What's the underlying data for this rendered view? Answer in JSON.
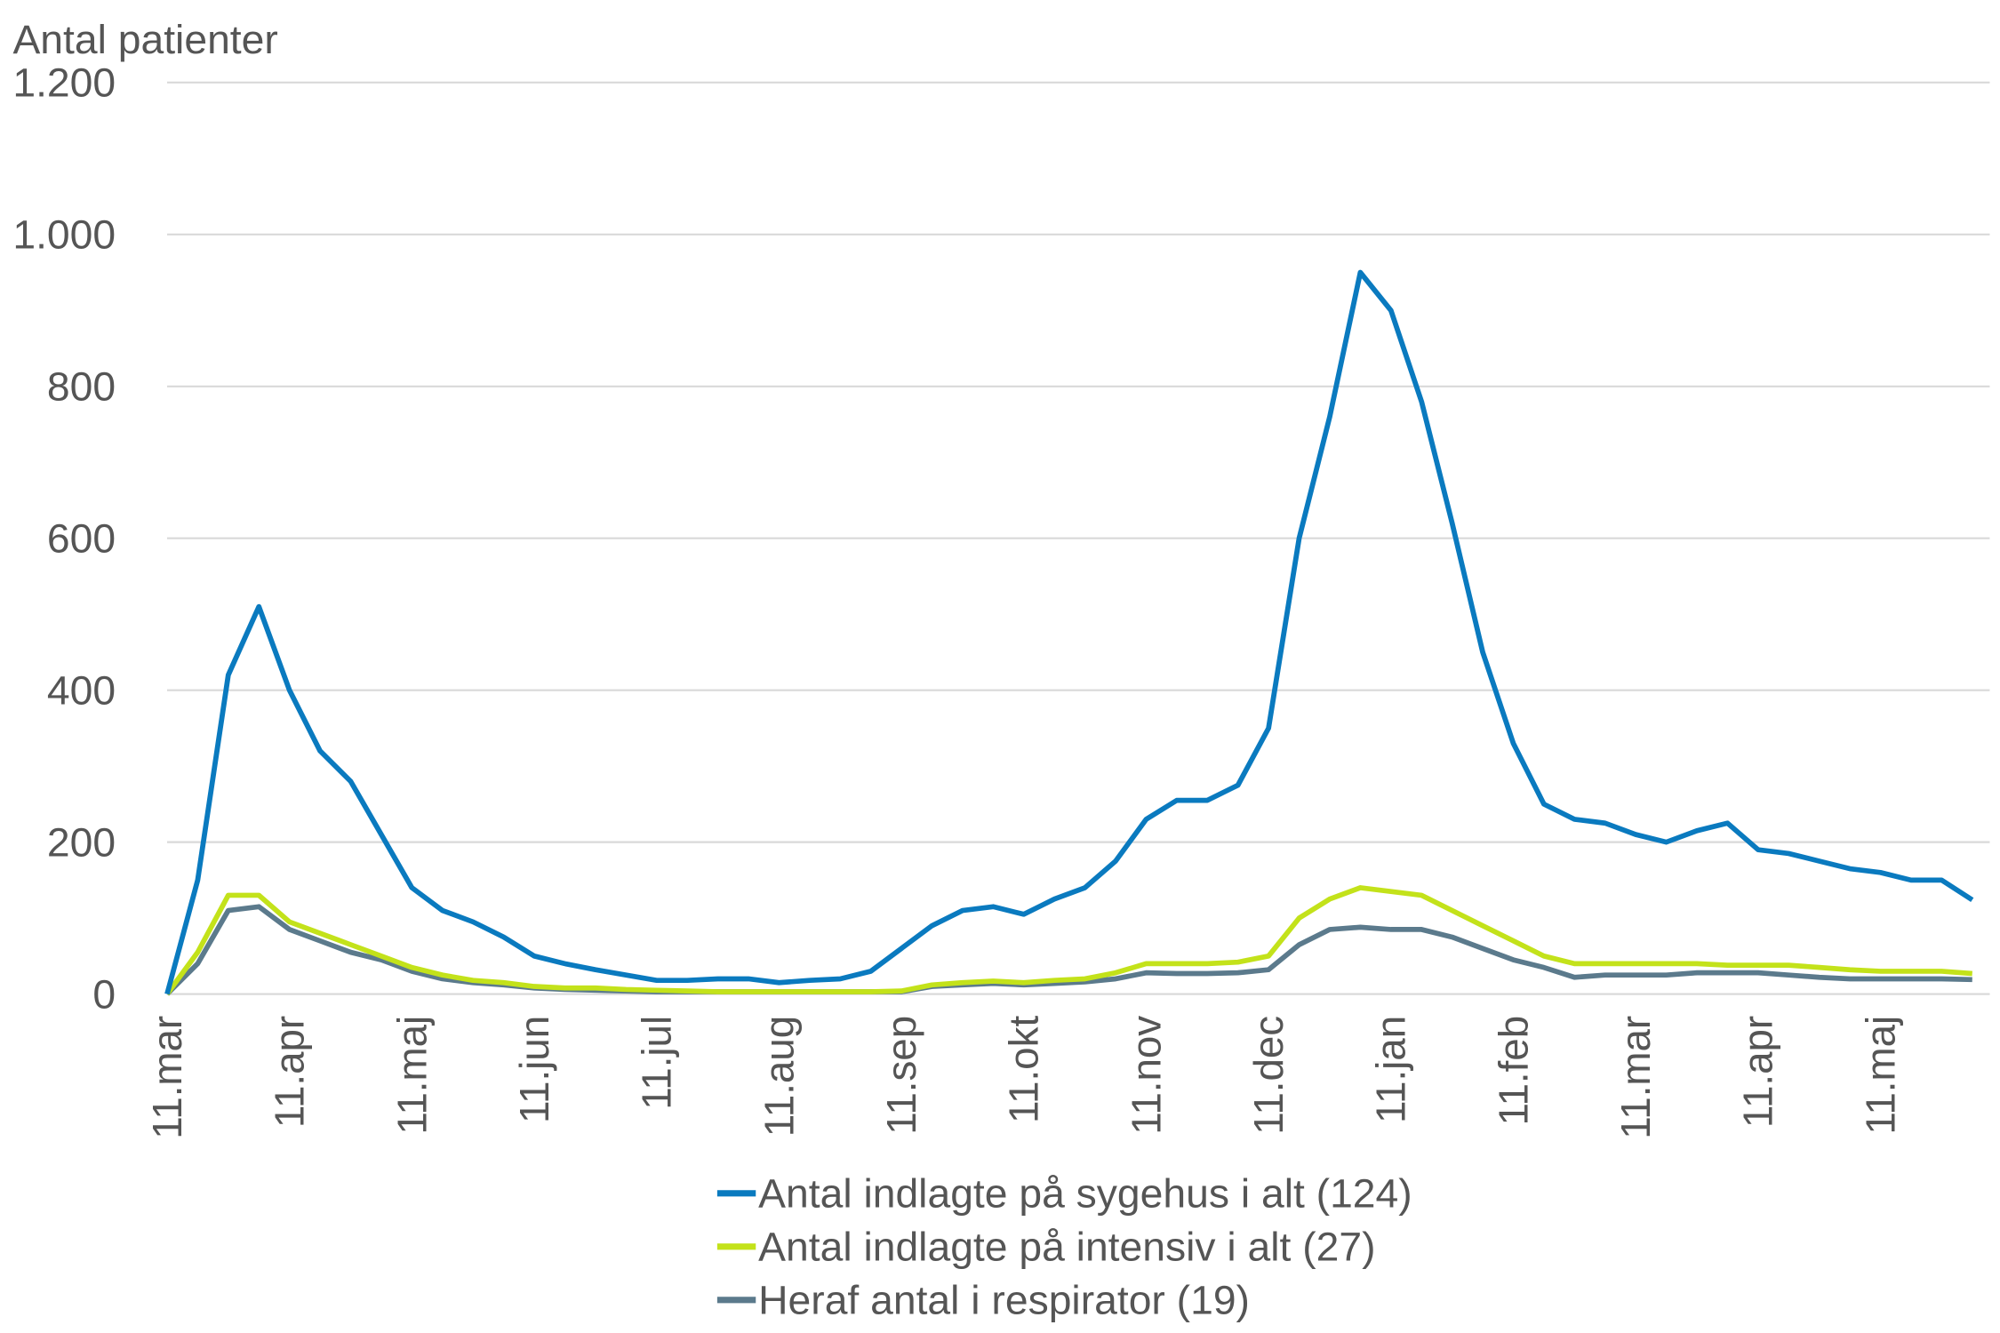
{
  "chart_data": {
    "type": "line",
    "y_label": "Antal patienter",
    "categories": [
      "11.mar",
      null,
      null,
      null,
      "11.apr",
      null,
      null,
      null,
      "11.maj",
      null,
      null,
      null,
      "11.jun",
      null,
      null,
      null,
      "11.jul",
      null,
      null,
      null,
      "11.aug",
      null,
      null,
      null,
      "11.sep",
      null,
      null,
      null,
      "11.okt",
      null,
      null,
      null,
      "11.nov",
      null,
      null,
      null,
      "11.dec",
      null,
      null,
      null,
      "11.jan",
      null,
      null,
      null,
      "11.feb",
      null,
      null,
      null,
      "11.mar",
      null,
      null,
      null,
      "11.apr",
      null,
      null,
      null,
      "11.maj",
      null,
      null,
      null
    ],
    "series": [
      {
        "name": "Antal indlagte på sygehus i alt (124)",
        "color": "#0a7abf",
        "values": [
          0,
          150,
          420,
          510,
          400,
          320,
          280,
          210,
          140,
          110,
          95,
          75,
          50,
          40,
          32,
          25,
          18,
          18,
          20,
          20,
          15,
          18,
          20,
          30,
          60,
          90,
          110,
          115,
          105,
          125,
          140,
          175,
          230,
          255,
          255,
          275,
          350,
          600,
          760,
          950,
          900,
          780,
          620,
          450,
          330,
          250,
          230,
          225,
          210,
          200,
          215,
          225,
          190,
          185,
          175,
          165,
          160,
          150,
          150,
          124
        ]
      },
      {
        "name": "Antal indlagte på intensiv i alt (27)",
        "color": "#c3e21a",
        "values": [
          0,
          55,
          130,
          130,
          95,
          80,
          65,
          50,
          35,
          25,
          18,
          15,
          10,
          8,
          8,
          6,
          5,
          4,
          3,
          3,
          3,
          3,
          3,
          3,
          4,
          12,
          15,
          17,
          15,
          18,
          20,
          28,
          40,
          40,
          40,
          42,
          50,
          100,
          125,
          140,
          135,
          130,
          110,
          90,
          70,
          50,
          40,
          40,
          40,
          40,
          40,
          38,
          38,
          38,
          35,
          32,
          30,
          30,
          30,
          27
        ]
      },
      {
        "name": "Heraf antal i respirator (19)",
        "color": "#5b7a8c",
        "values": [
          0,
          40,
          110,
          115,
          85,
          70,
          55,
          45,
          30,
          20,
          15,
          12,
          8,
          6,
          5,
          4,
          3,
          3,
          3,
          3,
          3,
          3,
          3,
          3,
          3,
          10,
          12,
          14,
          12,
          14,
          16,
          20,
          28,
          27,
          27,
          28,
          32,
          65,
          85,
          88,
          85,
          85,
          75,
          60,
          45,
          35,
          22,
          25,
          25,
          25,
          28,
          28,
          28,
          25,
          22,
          20,
          20,
          20,
          20,
          19
        ]
      }
    ],
    "ylim": [
      0,
      1200
    ],
    "yticks": [
      0,
      200,
      400,
      600,
      800,
      {
        "value": 1000,
        "label": "1.000"
      },
      {
        "value": 1200,
        "label": "1.200"
      }
    ],
    "grid": true
  }
}
